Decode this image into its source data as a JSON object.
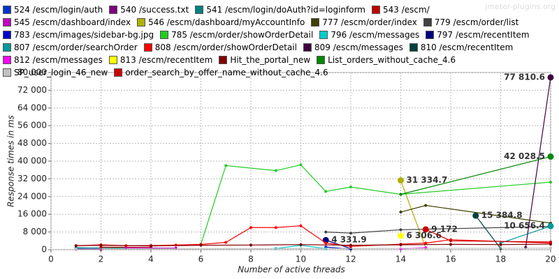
{
  "chart_data": {
    "type": "line",
    "watermark": "jmeter-plugins.org",
    "x_label": "Number of active threads",
    "y_label": "Response times in ms",
    "xlim": [
      0,
      20
    ],
    "xticks": [
      0,
      2,
      4,
      6,
      8,
      10,
      12,
      14,
      16,
      18,
      20
    ],
    "ylim": [
      0,
      80000
    ],
    "yticks": [
      0,
      {
        "value": 8000,
        "label": "8 000"
      },
      {
        "value": 16000,
        "label": "16 000"
      },
      {
        "value": 24000,
        "label": "24 000"
      },
      {
        "value": 32000,
        "label": "32 000"
      },
      {
        "value": 40000,
        "label": "40 000"
      },
      {
        "value": 48000,
        "label": "48 000"
      },
      {
        "value": 56000,
        "label": "56 000"
      },
      {
        "value": 64000,
        "label": "64 000"
      },
      {
        "value": 72000,
        "label": "72 000"
      },
      {
        "value": 80000,
        "label": "80 000"
      }
    ],
    "grid": true,
    "series": [
      {
        "name": "524 /escm/login/auth",
        "color": "#0033cc",
        "x": [
          1,
          2
        ],
        "values": [
          600,
          400
        ]
      },
      {
        "name": "540 /success.txt",
        "color": "#800080",
        "x": [
          1,
          2
        ],
        "values": [
          200,
          150
        ]
      },
      {
        "name": "541 /escm/login/doAuth?id=loginform",
        "color": "#008080",
        "x": [
          1,
          3
        ],
        "values": [
          900,
          700
        ]
      },
      {
        "name": "543 /escm/",
        "color": "#c00000",
        "x": [
          2,
          4
        ],
        "values": [
          1200,
          1000
        ]
      },
      {
        "name": "545 /escm/dashboard/index",
        "color": "#c000c0",
        "x": [
          3,
          5
        ],
        "values": [
          800,
          700
        ]
      },
      {
        "name": "546 /escm/dashboard/myAccountInfo",
        "color": "#b0b000",
        "x": [
          14,
          15
        ],
        "values": [
          31334.7,
          800
        ],
        "value_labels": [
          "31 334.7",
          null
        ]
      },
      {
        "name": "777 /escm/order/index",
        "color": "#404000",
        "x": [
          14,
          15,
          20
        ],
        "values": [
          17000,
          20000,
          12000
        ]
      },
      {
        "name": "779 /escm/order/list",
        "color": "#404040",
        "x": [
          11,
          12,
          14,
          20
        ],
        "values": [
          8000,
          7500,
          9000,
          10500
        ]
      },
      {
        "name": "783 /escm/images/sidebar-bg.jpg",
        "color": "#0000cc",
        "x": [
          11,
          12
        ],
        "values": [
          1200,
          300
        ]
      },
      {
        "name": "785 /escm/order/showOrderDetail",
        "color": "#22cc22",
        "x": [
          6,
          7,
          9,
          10,
          11,
          12,
          14,
          20
        ],
        "values": [
          2500,
          38000,
          35700,
          38300,
          26300,
          28300,
          25000,
          30500
        ]
      },
      {
        "name": "796 /escm/messages",
        "color": "#00cccc",
        "x": [
          9,
          10,
          11
        ],
        "values": [
          500,
          2000,
          500
        ]
      },
      {
        "name": "797 /escm/recentItem",
        "color": "#000080",
        "x": [
          11,
          12
        ],
        "values": [
          4331.9,
          500
        ],
        "value_labels": [
          "4 331.9",
          null
        ]
      },
      {
        "name": "807 /escm/order/searchOrder",
        "color": "#009999",
        "x": [
          18,
          20
        ],
        "values": [
          3000,
          10656.4
        ],
        "value_labels": [
          null,
          "10 656.4"
        ]
      },
      {
        "name": "808 /escm/order/showOrderDetail",
        "color": "#ff0000",
        "x": [
          1,
          2,
          3,
          4,
          5,
          6,
          7,
          8,
          9,
          10,
          11,
          12,
          14,
          15,
          16,
          20
        ],
        "values": [
          1800,
          2200,
          1800,
          1900,
          2100,
          2400,
          3300,
          10000,
          10000,
          10800,
          3000,
          1500,
          2500,
          3000,
          4500,
          3000
        ]
      },
      {
        "name": "809 /escm/messages",
        "color": "#400040",
        "x": [
          19,
          20
        ],
        "values": [
          1000,
          77810.6
        ],
        "value_labels": [
          null,
          "77 810.6"
        ]
      },
      {
        "name": "810 /escm/recentItem",
        "color": "#004040",
        "x": [
          17,
          18
        ],
        "values": [
          15384.8,
          500
        ],
        "value_labels": [
          "15 384.8",
          null
        ]
      },
      {
        "name": "812 /escm/messages",
        "color": "#ff00ff",
        "x": [
          14,
          15
        ],
        "values": [
          400,
          900
        ]
      },
      {
        "name": "813 /escm/recentItem",
        "color": "#ffff00",
        "x": [
          14
        ],
        "values": [
          6306.6
        ],
        "value_labels": [
          "6 306.6"
        ]
      },
      {
        "name": "Hit_the_portal_new",
        "color": "#800000",
        "x": [
          1,
          2,
          4,
          6,
          8,
          10,
          12,
          14,
          16,
          18,
          20
        ],
        "values": [
          1800,
          2000,
          1700,
          2000,
          2100,
          2300,
          2000,
          2200,
          2400,
          2300,
          2500
        ]
      },
      {
        "name": "List_orders_without_cache_4.6",
        "color": "#008800",
        "x": [
          14,
          20
        ],
        "values": [
          25000,
          42028.5
        ],
        "value_labels": [
          null,
          "42 028.5"
        ]
      },
      {
        "name": "SP_user_login_46_new",
        "color": "#c0c0c0",
        "x": [
          1,
          10,
          20
        ],
        "values": [
          300,
          500,
          700
        ]
      },
      {
        "name": "order_search_by_offer_name_without_cache_4.6",
        "color": "#cc0000",
        "x": [
          15,
          16,
          20
        ],
        "values": [
          9172,
          4000,
          3500
        ],
        "value_labels": [
          "9 172",
          null,
          null
        ]
      }
    ]
  }
}
